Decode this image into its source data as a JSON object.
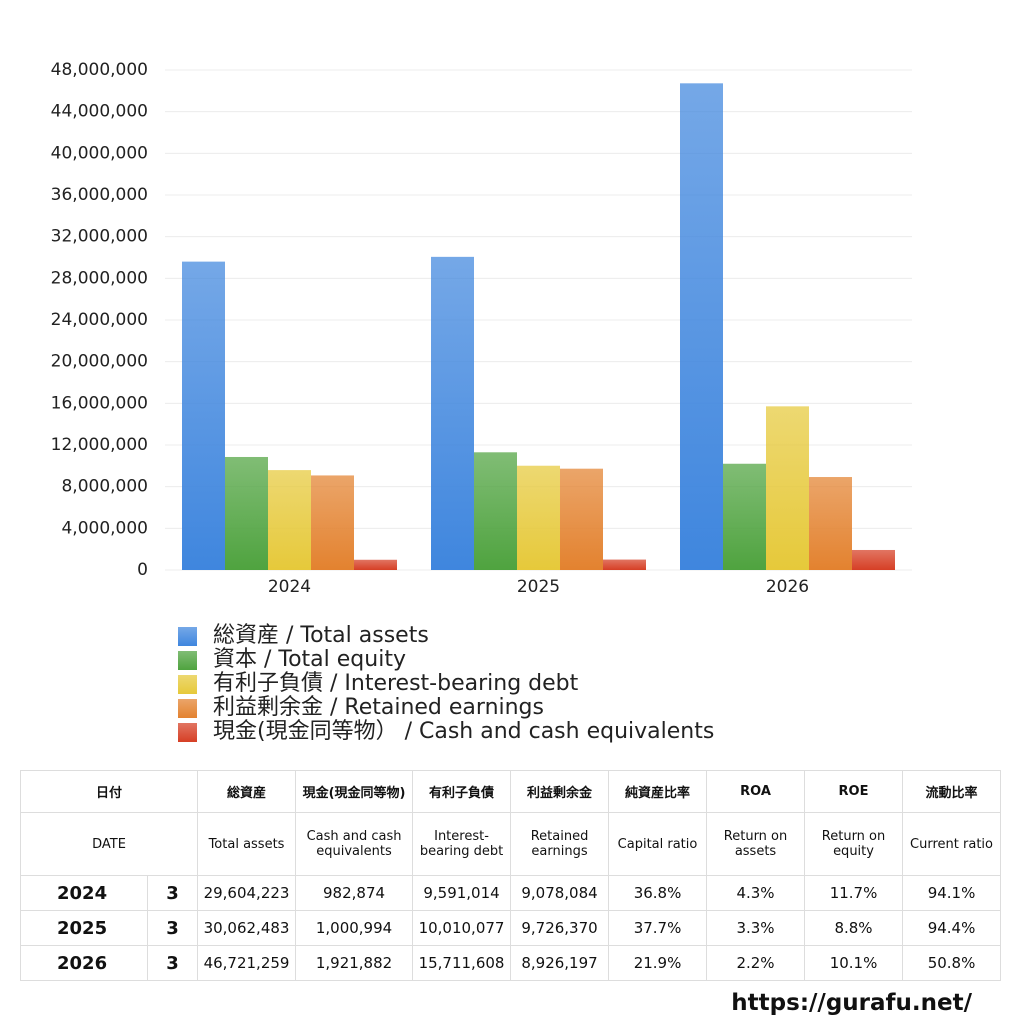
{
  "chart_data": {
    "type": "bar",
    "categories": [
      "2024",
      "2025",
      "2026"
    ],
    "series": [
      {
        "name": "総資産 / Total assets",
        "color": "#3f86de",
        "values": [
          29604223,
          30062483,
          46721259
        ]
      },
      {
        "name": "資本 / Total equity",
        "color": "#4fa33f",
        "values": [
          10850000,
          11300000,
          10200000
        ]
      },
      {
        "name": "有利子負債 / Interest-bearing debt",
        "color": "#e6c93a",
        "values": [
          9591014,
          10010077,
          15711608
        ]
      },
      {
        "name": "利益剰余金 / Retained earnings",
        "color": "#e3822f",
        "values": [
          9078084,
          9726370,
          8926197
        ]
      },
      {
        "name": "現金(現金同等物） /  Cash and cash equivalents",
        "color": "#d63f25",
        "values": [
          982874,
          1000994,
          1921882
        ]
      }
    ],
    "ylim": [
      0,
      48000000
    ],
    "yticks": [
      0,
      {
        "value": 4000000,
        "label": "4,000,000"
      },
      {
        "value": 8000000,
        "label": "8,000,000"
      },
      {
        "value": 12000000,
        "label": "12,000,000"
      },
      {
        "value": 16000000,
        "label": "16,000,000"
      },
      {
        "value": 20000000,
        "label": "20,000,000"
      },
      {
        "value": 24000000,
        "label": "24,000,000"
      },
      {
        "value": 28000000,
        "label": "28,000,000"
      },
      {
        "value": 32000000,
        "label": "32,000,000"
      },
      {
        "value": 36000000,
        "label": "36,000,000"
      },
      {
        "value": 40000000,
        "label": "40,000,000"
      },
      {
        "value": 44000000,
        "label": "44,000,000"
      },
      {
        "value": 48000000,
        "label": "48,000,000"
      }
    ],
    "grid": true
  },
  "table": {
    "header_ja": [
      "日付",
      "総資産",
      "現金(現金同等物)",
      "有利子負債",
      "利益剰余金",
      "純資産比率",
      "ROA",
      "ROE",
      "流動比率"
    ],
    "header_en": [
      "DATE",
      "Total assets",
      "Cash and cash equivalents",
      "Interest-bearing debt",
      "Retained earnings",
      "Capital ratio",
      "Return on assets",
      "Return on equity",
      "Current ratio"
    ],
    "rows": [
      [
        "2024",
        "3",
        "29,604,223",
        "982,874",
        "9,591,014",
        "9,078,084",
        "36.8%",
        "4.3%",
        "11.7%",
        "94.1%"
      ],
      [
        "2025",
        "3",
        "30,062,483",
        "1,000,994",
        "10,010,077",
        "9,726,370",
        "37.7%",
        "3.3%",
        "8.8%",
        "94.4%"
      ],
      [
        "2026",
        "3",
        "46,721,259",
        "1,921,882",
        "15,711,608",
        "8,926,197",
        "21.9%",
        "2.2%",
        "10.1%",
        "50.8%"
      ]
    ]
  },
  "footer": "https://gurafu.net/"
}
